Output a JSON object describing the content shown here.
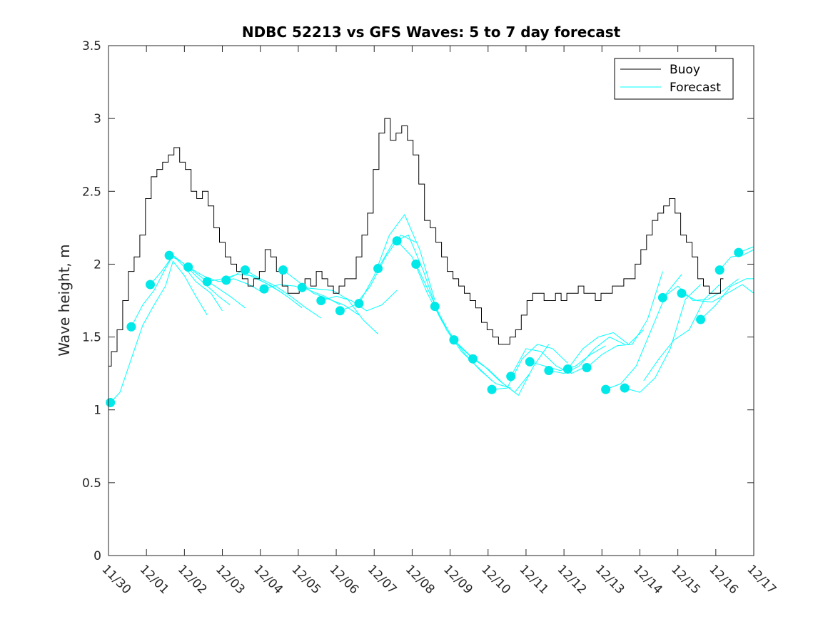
{
  "chart_data": {
    "type": "line",
    "title": "NDBC 52213 vs GFS Waves: 5 to 7 day forecast",
    "xlabel": "",
    "ylabel": "Wave height, m",
    "x_unit": "days since 11/30",
    "xlim": [
      0,
      17
    ],
    "ylim": [
      0,
      3.5
    ],
    "yticks": [
      0,
      0.5,
      1,
      1.5,
      2,
      2.5,
      3,
      3.5
    ],
    "ytick_labels": [
      "0",
      "0.5",
      "1",
      "1.5",
      "2",
      "2.5",
      "3",
      "3.5"
    ],
    "xticks": [
      0,
      1,
      2,
      3,
      4,
      5,
      6,
      7,
      8,
      9,
      10,
      11,
      12,
      13,
      14,
      15,
      16,
      17
    ],
    "xtick_labels": [
      "11/30",
      "12/01",
      "12/02",
      "12/03",
      "12/04",
      "12/05",
      "12/06",
      "12/07",
      "12/08",
      "12/09",
      "12/10",
      "12/11",
      "12/12",
      "12/13",
      "12/14",
      "12/15",
      "12/16",
      "12/17"
    ],
    "legend": {
      "position": "top-right",
      "entries": [
        "Buoy",
        "Forecast"
      ]
    },
    "colors": {
      "buoy": "#000000",
      "forecast": "#00ffff",
      "markers": "#00e8e8",
      "axes": "#262626"
    },
    "series": [
      {
        "name": "Buoy",
        "x": [
          0,
          0.15,
          0.3,
          0.45,
          0.6,
          0.75,
          0.9,
          1.05,
          1.2,
          1.35,
          1.5,
          1.65,
          1.8,
          1.95,
          2.1,
          2.25,
          2.4,
          2.55,
          2.7,
          2.85,
          3.0,
          3.15,
          3.3,
          3.45,
          3.6,
          3.75,
          3.9,
          4.05,
          4.2,
          4.35,
          4.5,
          4.65,
          4.8,
          4.95,
          5.1,
          5.25,
          5.4,
          5.55,
          5.7,
          5.85,
          6.0,
          6.15,
          6.3,
          6.45,
          6.6,
          6.75,
          6.9,
          7.05,
          7.2,
          7.35,
          7.5,
          7.65,
          7.8,
          7.95,
          8.1,
          8.25,
          8.4,
          8.55,
          8.7,
          8.85,
          9.0,
          9.15,
          9.3,
          9.45,
          9.6,
          9.75,
          9.9,
          10.05,
          10.2,
          10.35,
          10.5,
          10.65,
          10.8,
          10.95,
          11.1,
          11.25,
          11.4,
          11.55,
          11.7,
          11.85,
          12.0,
          12.15,
          12.3,
          12.45,
          12.6,
          12.75,
          12.9,
          13.05,
          13.2,
          13.35,
          13.5,
          13.65,
          13.8,
          13.95,
          14.1,
          14.25,
          14.4,
          14.55,
          14.7,
          14.85,
          15.0,
          15.15,
          15.3,
          15.45,
          15.6,
          15.75,
          15.9,
          16.05,
          16.2
        ],
        "values": [
          1.3,
          1.4,
          1.55,
          1.75,
          1.95,
          2.05,
          2.2,
          2.45,
          2.6,
          2.65,
          2.7,
          2.75,
          2.8,
          2.7,
          2.65,
          2.5,
          2.45,
          2.5,
          2.4,
          2.25,
          2.15,
          2.05,
          2.0,
          1.95,
          1.9,
          1.85,
          1.9,
          1.95,
          2.1,
          2.05,
          1.95,
          1.85,
          1.8,
          1.8,
          1.85,
          1.9,
          1.85,
          1.95,
          1.9,
          1.85,
          1.8,
          1.85,
          1.9,
          1.9,
          2.05,
          2.2,
          2.35,
          2.65,
          2.9,
          3.0,
          2.85,
          2.9,
          2.95,
          2.85,
          2.75,
          2.55,
          2.3,
          2.25,
          2.15,
          2.05,
          1.95,
          1.9,
          1.85,
          1.8,
          1.75,
          1.7,
          1.6,
          1.55,
          1.5,
          1.45,
          1.45,
          1.5,
          1.55,
          1.65,
          1.75,
          1.8,
          1.8,
          1.75,
          1.75,
          1.8,
          1.75,
          1.8,
          1.8,
          1.85,
          1.8,
          1.8,
          1.75,
          1.8,
          1.8,
          1.85,
          1.85,
          1.9,
          1.9,
          2.0,
          2.1,
          2.2,
          2.3,
          2.35,
          2.4,
          2.45,
          2.35,
          2.2,
          2.15,
          2.05,
          1.9,
          1.85,
          1.8,
          1.8,
          1.9
        ]
      }
    ],
    "forecast_lines": [
      {
        "name": "Forecast",
        "x": [
          0.05,
          0.3,
          0.6,
          0.9,
          1.2,
          1.5,
          1.7,
          2.0,
          2.3,
          2.6
        ],
        "values": [
          1.05,
          1.12,
          1.35,
          1.58,
          1.72,
          1.85,
          2.02,
          1.92,
          1.78,
          1.65
        ]
      },
      {
        "name": "Forecast",
        "x": [
          0.6,
          0.9,
          1.2,
          1.5,
          1.7,
          2.0,
          2.3,
          2.7,
          3.0
        ],
        "values": [
          1.57,
          1.72,
          1.82,
          1.97,
          2.06,
          1.98,
          1.88,
          1.8,
          1.68
        ]
      },
      {
        "name": "Forecast",
        "x": [
          1.1,
          1.4,
          1.7,
          2.0,
          2.3,
          2.6,
          2.9,
          3.2
        ],
        "values": [
          1.86,
          1.95,
          2.06,
          2.0,
          1.92,
          1.85,
          1.78,
          1.72
        ]
      },
      {
        "name": "Forecast",
        "x": [
          1.6,
          1.9,
          2.2,
          2.5,
          2.8,
          3.2,
          3.6
        ],
        "values": [
          2.06,
          2.02,
          1.96,
          1.9,
          1.85,
          1.78,
          1.7
        ]
      },
      {
        "name": "Forecast",
        "x": [
          2.1,
          2.5,
          2.9,
          3.3,
          3.7,
          4.1
        ],
        "values": [
          1.98,
          1.92,
          1.88,
          1.9,
          1.86,
          1.8
        ]
      },
      {
        "name": "Forecast",
        "x": [
          2.6,
          3.0,
          3.4,
          3.8,
          4.2,
          4.6
        ],
        "values": [
          1.88,
          1.9,
          1.93,
          1.92,
          1.86,
          1.8
        ]
      },
      {
        "name": "Forecast",
        "x": [
          3.1,
          3.5,
          3.9,
          4.3,
          4.7,
          5.1
        ],
        "values": [
          1.89,
          1.95,
          1.9,
          1.85,
          1.78,
          1.7
        ]
      },
      {
        "name": "Forecast",
        "x": [
          3.6,
          4.0,
          4.4,
          4.8,
          5.2,
          5.6
        ],
        "values": [
          1.96,
          1.9,
          1.85,
          1.78,
          1.7,
          1.63
        ]
      },
      {
        "name": "Forecast",
        "x": [
          4.1,
          4.5,
          4.9,
          5.3,
          5.7,
          6.1
        ],
        "values": [
          1.83,
          1.86,
          1.85,
          1.82,
          1.78,
          1.72
        ]
      },
      {
        "name": "Forecast",
        "x": [
          4.6,
          5.0,
          5.4,
          5.8,
          6.2,
          6.6
        ],
        "values": [
          1.96,
          1.88,
          1.8,
          1.76,
          1.72,
          1.65
        ]
      },
      {
        "name": "Forecast",
        "x": [
          5.1,
          5.5,
          5.9,
          6.3,
          6.7,
          7.1
        ],
        "values": [
          1.84,
          1.83,
          1.82,
          1.76,
          1.62,
          1.52
        ]
      },
      {
        "name": "Forecast",
        "x": [
          5.6,
          6.0,
          6.4,
          6.8,
          7.2,
          7.6
        ],
        "values": [
          1.75,
          1.78,
          1.75,
          1.68,
          1.72,
          1.82
        ]
      },
      {
        "name": "Forecast",
        "x": [
          6.1,
          6.5,
          6.9,
          7.3,
          7.7,
          8.1
        ],
        "values": [
          1.68,
          1.72,
          1.85,
          2.05,
          2.2,
          2.15
        ]
      },
      {
        "name": "Forecast",
        "x": [
          6.6,
          7.0,
          7.4,
          7.8,
          8.2,
          8.6
        ],
        "values": [
          1.73,
          1.92,
          2.2,
          2.34,
          2.1,
          1.75
        ]
      },
      {
        "name": "Forecast",
        "x": [
          7.1,
          7.5,
          7.9,
          8.3,
          8.7,
          9.1
        ],
        "values": [
          1.97,
          2.15,
          2.2,
          1.95,
          1.65,
          1.48
        ]
      },
      {
        "name": "Forecast",
        "x": [
          7.6,
          8.0,
          8.4,
          8.8,
          9.2,
          9.6
        ],
        "values": [
          2.16,
          2.05,
          1.8,
          1.6,
          1.45,
          1.35
        ]
      },
      {
        "name": "Forecast",
        "x": [
          8.1,
          8.5,
          8.9,
          9.3,
          9.7,
          10.1
        ],
        "values": [
          2.0,
          1.78,
          1.55,
          1.4,
          1.3,
          1.2
        ]
      },
      {
        "name": "Forecast",
        "x": [
          8.6,
          9.0,
          9.4,
          9.8,
          10.2,
          10.6
        ],
        "values": [
          1.71,
          1.52,
          1.38,
          1.27,
          1.18,
          1.15
        ]
      },
      {
        "name": "Forecast",
        "x": [
          9.1,
          9.5,
          9.9,
          10.3,
          10.7,
          11.1
        ],
        "values": [
          1.48,
          1.38,
          1.3,
          1.2,
          1.12,
          1.25
        ]
      },
      {
        "name": "Forecast",
        "x": [
          9.6,
          10.0,
          10.4,
          10.8,
          11.2,
          11.6
        ],
        "values": [
          1.35,
          1.28,
          1.18,
          1.1,
          1.3,
          1.45
        ]
      },
      {
        "name": "Forecast",
        "x": [
          10.1,
          10.5,
          10.9,
          11.3,
          11.7,
          12.1
        ],
        "values": [
          1.14,
          1.15,
          1.35,
          1.45,
          1.42,
          1.32
        ]
      },
      {
        "name": "Forecast",
        "x": [
          10.6,
          11.0,
          11.4,
          11.8,
          12.2,
          12.6
        ],
        "values": [
          1.23,
          1.42,
          1.4,
          1.3,
          1.25,
          1.3
        ]
      },
      {
        "name": "Forecast",
        "x": [
          11.1,
          11.5,
          11.9,
          12.3,
          12.7,
          13.1
        ],
        "values": [
          1.33,
          1.3,
          1.27,
          1.3,
          1.38,
          1.44
        ]
      },
      {
        "name": "Forecast",
        "x": [
          11.6,
          12.0,
          12.4,
          12.8,
          13.2,
          13.6
        ],
        "values": [
          1.27,
          1.25,
          1.3,
          1.42,
          1.5,
          1.45
        ]
      },
      {
        "name": "Forecast",
        "x": [
          12.1,
          12.5,
          12.9,
          13.3,
          13.7,
          14.1
        ],
        "values": [
          1.28,
          1.42,
          1.5,
          1.53,
          1.45,
          1.55
        ]
      },
      {
        "name": "Forecast",
        "x": [
          12.6,
          13.0,
          13.4,
          13.8,
          14.2,
          14.6
        ],
        "values": [
          1.29,
          1.38,
          1.44,
          1.45,
          1.62,
          1.95
        ]
      },
      {
        "name": "Forecast",
        "x": [
          13.1,
          13.5,
          13.9,
          14.3,
          14.7,
          15.1
        ],
        "values": [
          1.14,
          1.18,
          1.3,
          1.55,
          1.8,
          1.93
        ]
      },
      {
        "name": "Forecast",
        "x": [
          13.6,
          14.0,
          14.4,
          14.8,
          15.2,
          15.6
        ],
        "values": [
          1.15,
          1.12,
          1.22,
          1.42,
          1.76,
          1.86
        ]
      },
      {
        "name": "Forecast",
        "x": [
          14.1,
          14.5,
          14.9,
          15.3,
          15.7,
          16.1
        ],
        "values": [
          1.2,
          1.35,
          1.48,
          1.55,
          1.76,
          1.86
        ]
      },
      {
        "name": "Forecast",
        "x": [
          14.6,
          15.0,
          15.4,
          15.8,
          16.2,
          16.6
        ],
        "values": [
          1.77,
          1.85,
          1.75,
          1.76,
          1.82,
          1.9
        ]
      },
      {
        "name": "Forecast",
        "x": [
          15.1,
          15.5,
          15.9,
          16.3,
          16.7,
          17.0
        ],
        "values": [
          1.8,
          1.75,
          1.74,
          1.8,
          1.86,
          1.8
        ]
      },
      {
        "name": "Forecast",
        "x": [
          15.6,
          16.0,
          16.4,
          16.8,
          17.0
        ],
        "values": [
          1.62,
          1.72,
          1.85,
          1.9,
          1.9
        ]
      },
      {
        "name": "Forecast",
        "x": [
          16.1,
          16.4,
          16.7,
          17.0
        ],
        "values": [
          1.96,
          2.05,
          2.06,
          2.1
        ]
      },
      {
        "name": "Forecast",
        "x": [
          16.6,
          16.8,
          17.0
        ],
        "values": [
          2.08,
          2.1,
          2.12
        ]
      }
    ],
    "forecast_markers": {
      "x": [
        0.05,
        0.6,
        1.1,
        1.6,
        2.1,
        2.6,
        3.1,
        3.6,
        4.1,
        4.6,
        5.1,
        5.6,
        6.1,
        6.6,
        7.1,
        7.6,
        8.1,
        8.6,
        9.1,
        9.6,
        10.1,
        10.6,
        11.1,
        11.6,
        12.1,
        12.6,
        13.1,
        13.6,
        14.6,
        15.1,
        15.6,
        16.1,
        16.6
      ],
      "values": [
        1.05,
        1.57,
        1.86,
        2.06,
        1.98,
        1.88,
        1.89,
        1.96,
        1.83,
        1.96,
        1.84,
        1.75,
        1.68,
        1.73,
        1.97,
        2.16,
        2.0,
        1.71,
        1.48,
        1.35,
        1.14,
        1.23,
        1.33,
        1.27,
        1.28,
        1.29,
        1.14,
        1.15,
        1.77,
        1.8,
        1.62,
        1.96,
        2.08
      ]
    }
  }
}
